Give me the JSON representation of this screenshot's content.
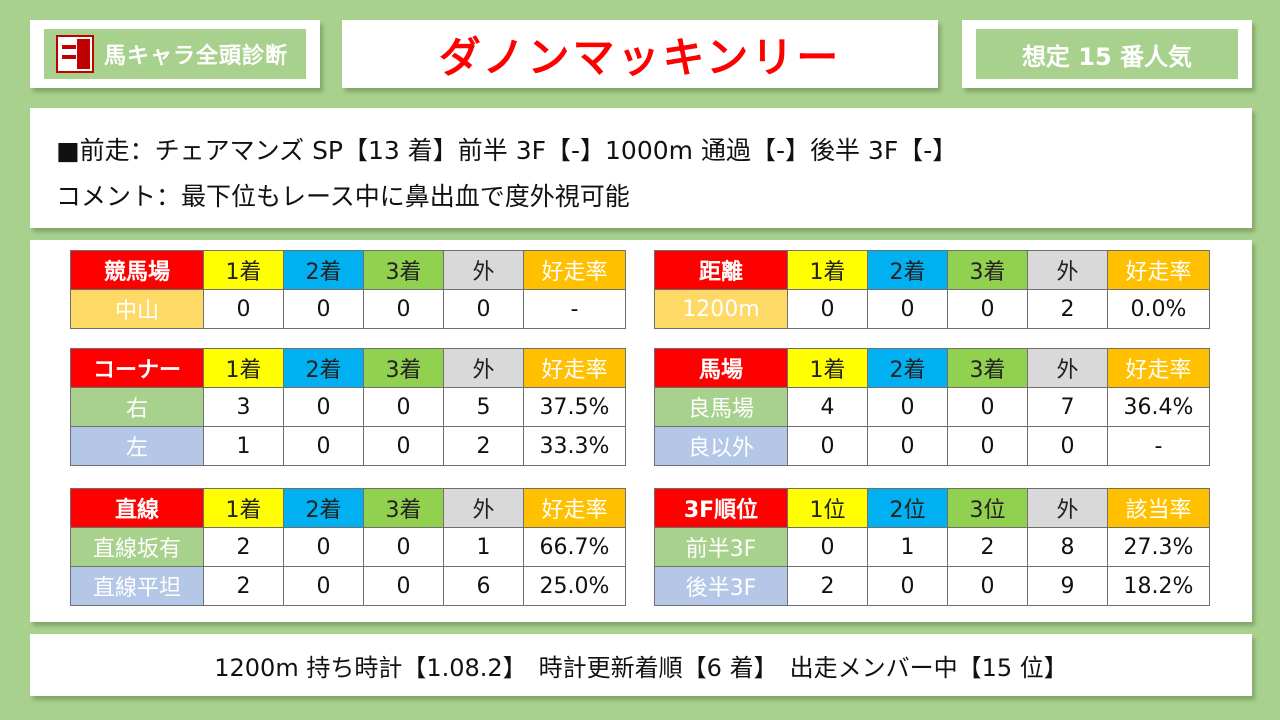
{
  "header": {
    "logo_icon": "sumire-logo-icon",
    "brand_title": "馬キャラ全頭診断",
    "horse_name": "ダノンマッキンリー",
    "popularity": "想定 15 番人気"
  },
  "info": {
    "last_race": "■前走：チェアマンズ SP【13 着】前半 3F【-】1000m 通過【-】後半 3F【-】",
    "comment": "コメント：最下位もレース中に鼻出血で度外視可能"
  },
  "colors": {
    "background": "#a9d18e",
    "header_red": "#ff0000",
    "first": "#ffff00",
    "second": "#00b0f0",
    "third": "#92d050",
    "out": "#d9d9d9",
    "rate": "#ffc000",
    "row_yellow": "#ffd966",
    "row_green": "#a9d18e",
    "row_blue": "#b4c7e7"
  },
  "tables": {
    "course": {
      "header": [
        "競馬場",
        "1着",
        "2着",
        "3着",
        "外",
        "好走率"
      ],
      "rows": [
        [
          "中山",
          "0",
          "0",
          "0",
          "0",
          "-"
        ]
      ]
    },
    "distance": {
      "header": [
        "距離",
        "1着",
        "2着",
        "3着",
        "外",
        "好走率"
      ],
      "rows": [
        [
          "1200m",
          "0",
          "0",
          "0",
          "2",
          "0.0%"
        ]
      ]
    },
    "corner": {
      "header": [
        "コーナー",
        "1着",
        "2着",
        "3着",
        "外",
        "好走率"
      ],
      "rows": [
        [
          "右",
          "3",
          "0",
          "0",
          "5",
          "37.5%"
        ],
        [
          "左",
          "1",
          "0",
          "0",
          "2",
          "33.3%"
        ]
      ]
    },
    "going": {
      "header": [
        "馬場",
        "1着",
        "2着",
        "3着",
        "外",
        "好走率"
      ],
      "rows": [
        [
          "良馬場",
          "4",
          "0",
          "0",
          "7",
          "36.4%"
        ],
        [
          "良以外",
          "0",
          "0",
          "0",
          "0",
          "-"
        ]
      ]
    },
    "straight": {
      "header": [
        "直線",
        "1着",
        "2着",
        "3着",
        "外",
        "好走率"
      ],
      "rows": [
        [
          "直線坂有",
          "2",
          "0",
          "0",
          "1",
          "66.7%"
        ],
        [
          "直線平坦",
          "2",
          "0",
          "0",
          "6",
          "25.0%"
        ]
      ]
    },
    "f3rank": {
      "header": [
        "3F順位",
        "1位",
        "2位",
        "3位",
        "外",
        "該当率"
      ],
      "rows": [
        [
          "前半3F",
          "0",
          "1",
          "2",
          "8",
          "27.3%"
        ],
        [
          "後半3F",
          "2",
          "0",
          "0",
          "9",
          "18.2%"
        ]
      ]
    }
  },
  "footer": {
    "text": "1200m 持ち時計【1.08.2】　時計更新着順【6 着】　出走メンバー中【15 位】"
  }
}
